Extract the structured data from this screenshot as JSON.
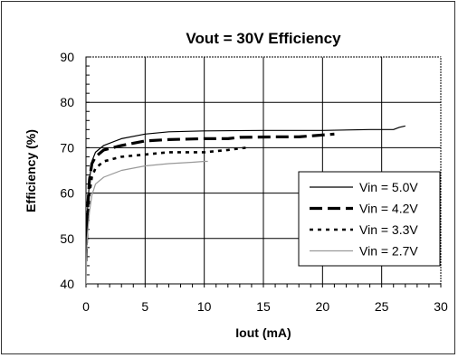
{
  "chart_data": {
    "type": "line",
    "title": "Vout = 30V Efficiency",
    "xlabel": "Iout (mA)",
    "ylabel": "Efficiency (%)",
    "xlim": [
      0,
      30
    ],
    "ylim": [
      40,
      90
    ],
    "xticks": [
      0,
      5,
      10,
      15,
      20,
      25,
      30
    ],
    "yticks": [
      40,
      50,
      60,
      70,
      80,
      90
    ],
    "grid": true,
    "legend_position": "bottom-right",
    "series": [
      {
        "name": "Vin = 5.0V",
        "style": "solid-thin",
        "color": "#000000",
        "points": [
          [
            0,
            42
          ],
          [
            0.1,
            55
          ],
          [
            0.3,
            63
          ],
          [
            0.5,
            67
          ],
          [
            0.8,
            69
          ],
          [
            1.5,
            70.5
          ],
          [
            3,
            72
          ],
          [
            5,
            73
          ],
          [
            7,
            73.5
          ],
          [
            10,
            73.7
          ],
          [
            15,
            73.8
          ],
          [
            20,
            73.8
          ],
          [
            24,
            74
          ],
          [
            26,
            74
          ],
          [
            26.5,
            74.5
          ],
          [
            27,
            74.8
          ]
        ]
      },
      {
        "name": "Vin = 4.2V",
        "style": "dash-thick",
        "color": "#000000",
        "points": [
          [
            0,
            45
          ],
          [
            0.1,
            55
          ],
          [
            0.3,
            63
          ],
          [
            0.5,
            66.5
          ],
          [
            0.8,
            68
          ],
          [
            1.5,
            69.5
          ],
          [
            3,
            70.5
          ],
          [
            5,
            71.5
          ],
          [
            7,
            71.8
          ],
          [
            10,
            72
          ],
          [
            12,
            72
          ],
          [
            13,
            72.3
          ],
          [
            16,
            72.4
          ],
          [
            18,
            72.4
          ],
          [
            20,
            72.8
          ],
          [
            21,
            73
          ]
        ]
      },
      {
        "name": "Vin = 3.3V",
        "style": "dot",
        "color": "#000000",
        "points": [
          [
            0,
            45
          ],
          [
            0.1,
            53
          ],
          [
            0.3,
            60
          ],
          [
            0.5,
            63.5
          ],
          [
            0.8,
            65.5
          ],
          [
            1.5,
            67
          ],
          [
            3,
            68
          ],
          [
            5,
            68.5
          ],
          [
            7,
            69
          ],
          [
            10,
            69
          ],
          [
            12,
            69.5
          ],
          [
            13.5,
            70
          ]
        ]
      },
      {
        "name": "Vin = 2.7V",
        "style": "solid-gray",
        "color": "#999999",
        "points": [
          [
            0,
            40
          ],
          [
            0.1,
            50
          ],
          [
            0.3,
            56
          ],
          [
            0.5,
            59.5
          ],
          [
            0.8,
            62
          ],
          [
            1.5,
            63.5
          ],
          [
            3,
            65
          ],
          [
            5,
            66
          ],
          [
            7,
            66.5
          ],
          [
            9,
            66.8
          ],
          [
            10,
            67
          ],
          [
            10.3,
            67
          ]
        ]
      }
    ]
  }
}
